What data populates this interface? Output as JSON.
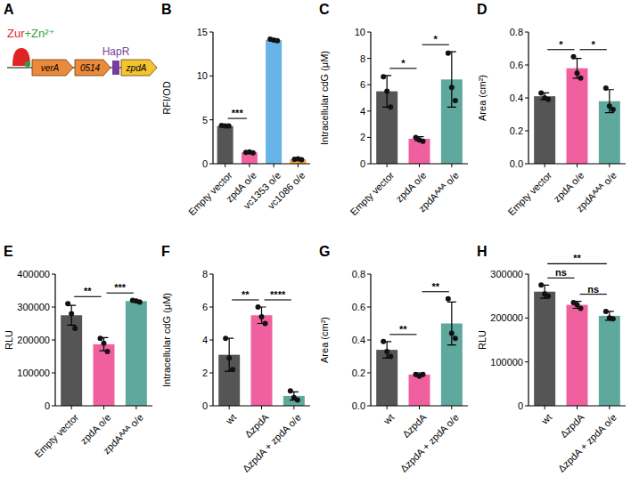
{
  "diagram": {
    "panel": "A",
    "regulator": [
      {
        "text": "Zur",
        "color": "#e02424"
      },
      {
        "text": "+Zn²⁺",
        "color": "#2e9e3e"
      }
    ],
    "genes": [
      {
        "label": "verA",
        "color": "#ec8a3c"
      },
      {
        "label": "0514",
        "color": "#ec8a3c"
      },
      {
        "label": "zpdA",
        "color": "#f4c430"
      }
    ],
    "site": {
      "label": "HapR",
      "color": "#7a3d9c"
    }
  },
  "chart_data": [
    {
      "panel": "B",
      "type": "bar",
      "y_label": "RFI/OD",
      "categories": [
        "Empty vector",
        "zpdA o/e",
        "vc1353 o/e",
        "vc1086 o/e"
      ],
      "values": [
        4.3,
        1.3,
        14.1,
        0.5
      ],
      "errors": [
        0.05,
        0.08,
        0.1,
        0.05
      ],
      "points": [
        [
          4.35,
          4.3,
          4.3
        ],
        [
          1.3,
          1.35,
          1.25
        ],
        [
          14.2,
          14.1,
          14.0
        ],
        [
          0.5,
          0.55,
          0.45
        ]
      ],
      "colors": [
        "#555555",
        "#f0609e",
        "#66b3e8",
        "#f5a033"
      ],
      "ylim": [
        0,
        15
      ],
      "yticks": [
        0,
        5,
        10,
        15
      ],
      "significance": [
        {
          "from": 0,
          "to": 1,
          "label": "***"
        }
      ]
    },
    {
      "panel": "C",
      "type": "bar",
      "y_label": "Intracellular cdG (μM)",
      "categories": [
        "Empty vector",
        "zpdA o/e",
        "zpdAᴬᴬᴬ o/e"
      ],
      "values": [
        5.5,
        1.9,
        6.4
      ],
      "errors": [
        1.2,
        0.15,
        2.1
      ],
      "points": [
        [
          6.6,
          5.5,
          4.3
        ],
        [
          2.0,
          1.8,
          1.7
        ],
        [
          8.4,
          5.8,
          4.8
        ]
      ],
      "colors": [
        "#555555",
        "#f0609e",
        "#5fa89e"
      ],
      "ylim": [
        0,
        10
      ],
      "yticks": [
        0,
        2,
        4,
        6,
        8,
        10
      ],
      "significance": [
        {
          "from": 0,
          "to": 1,
          "label": "*"
        },
        {
          "from": 1,
          "to": 2,
          "label": "*"
        }
      ]
    },
    {
      "panel": "D",
      "type": "bar",
      "y_label": "Area (cm²)",
      "categories": [
        "Empty vector",
        "zpdA o/e",
        "zpdAᴬᴬᴬ o/e"
      ],
      "values": [
        0.41,
        0.58,
        0.38
      ],
      "errors": [
        0.02,
        0.06,
        0.07
      ],
      "points": [
        [
          0.43,
          0.4,
          0.39
        ],
        [
          0.65,
          0.55,
          0.52
        ],
        [
          0.46,
          0.35,
          0.33
        ]
      ],
      "colors": [
        "#555555",
        "#f0609e",
        "#5fa89e"
      ],
      "ylim": [
        0,
        0.8
      ],
      "yticks": [
        {
          "value": 0,
          "label": "0.0"
        },
        {
          "value": 0.2,
          "label": "0.2"
        },
        {
          "value": 0.4,
          "label": "0.4"
        },
        {
          "value": 0.6,
          "label": "0.6"
        },
        {
          "value": 0.8,
          "label": "0.8"
        }
      ],
      "significance": [
        {
          "from": 0,
          "to": 1,
          "label": "*"
        },
        {
          "from": 1,
          "to": 2,
          "label": "*"
        }
      ]
    },
    {
      "panel": "E",
      "type": "bar",
      "y_label": "RLU",
      "categories": [
        "Empty vector",
        "zpdA o/e",
        "zpdAᴬᴬᴬ o/e"
      ],
      "values": [
        275000,
        187000,
        318000
      ],
      "errors": [
        30000,
        20000,
        3000
      ],
      "points": [
        [
          310000,
          280000,
          235000
        ],
        [
          205000,
          190000,
          165000
        ],
        [
          320000,
          318000,
          315000
        ]
      ],
      "colors": [
        "#555555",
        "#f0609e",
        "#5fa89e"
      ],
      "ylim": [
        0,
        400000
      ],
      "yticks": [
        0,
        100000,
        200000,
        300000,
        400000
      ],
      "significance": [
        {
          "from": 0,
          "to": 1,
          "label": "**"
        },
        {
          "from": 1,
          "to": 2,
          "label": "***"
        }
      ]
    },
    {
      "panel": "F",
      "type": "bar",
      "y_label": "Intracellular cdG (μM)",
      "categories": [
        "wt",
        "ΔzpdA",
        "ΔzpdA + zpdA o/e"
      ],
      "values": [
        3.1,
        5.5,
        0.6
      ],
      "errors": [
        1.0,
        0.5,
        0.25
      ],
      "points": [
        [
          4.1,
          2.9,
          2.2
        ],
        [
          6.0,
          5.4,
          5.0
        ],
        [
          0.9,
          0.5,
          0.35
        ]
      ],
      "colors": [
        "#555555",
        "#f0609e",
        "#5fa89e"
      ],
      "ylim": [
        0,
        8
      ],
      "yticks": [
        0,
        2,
        4,
        6,
        8
      ],
      "significance": [
        {
          "from": 0,
          "to": 1,
          "label": "**"
        },
        {
          "from": 1,
          "to": 2,
          "label": "****"
        }
      ]
    },
    {
      "panel": "G",
      "type": "bar",
      "y_label": "Area (cm²)",
      "categories": [
        "wt",
        "ΔzpdA",
        "ΔzpdA + zpdA o/e"
      ],
      "values": [
        0.34,
        0.19,
        0.5
      ],
      "errors": [
        0.05,
        0.01,
        0.13
      ],
      "points": [
        [
          0.39,
          0.33,
          0.3
        ],
        [
          0.19,
          0.18,
          0.19
        ],
        [
          0.65,
          0.44,
          0.41
        ]
      ],
      "colors": [
        "#555555",
        "#f0609e",
        "#5fa89e"
      ],
      "ylim": [
        0,
        0.8
      ],
      "yticks": [
        {
          "value": 0,
          "label": "0.0"
        },
        {
          "value": 0.2,
          "label": "0.2"
        },
        {
          "value": 0.4,
          "label": "0.4"
        },
        {
          "value": 0.6,
          "label": "0.6"
        },
        {
          "value": 0.8,
          "label": "0.8"
        }
      ],
      "significance": [
        {
          "from": 0,
          "to": 1,
          "label": "**"
        },
        {
          "from": 1,
          "to": 2,
          "label": "**"
        }
      ]
    },
    {
      "panel": "H",
      "type": "bar",
      "y_label": "RLU",
      "categories": [
        "wt",
        "ΔzpdA",
        "ΔzpdA + zpdA o/e"
      ],
      "values": [
        260000,
        230000,
        205000
      ],
      "errors": [
        15000,
        8000,
        10000
      ],
      "points": [
        [
          275000,
          255000,
          250000
        ],
        [
          235000,
          230000,
          222000
        ],
        [
          215000,
          200000,
          198000
        ]
      ],
      "colors": [
        "#555555",
        "#f0609e",
        "#5fa89e"
      ],
      "ylim": [
        0,
        300000
      ],
      "yticks": [
        0,
        100000,
        200000,
        300000
      ],
      "significance": [
        {
          "from": 0,
          "to": 1,
          "label": "ns"
        },
        {
          "from": 1,
          "to": 2,
          "label": "ns"
        },
        {
          "from": 0,
          "to": 2,
          "label": "**"
        }
      ]
    }
  ]
}
